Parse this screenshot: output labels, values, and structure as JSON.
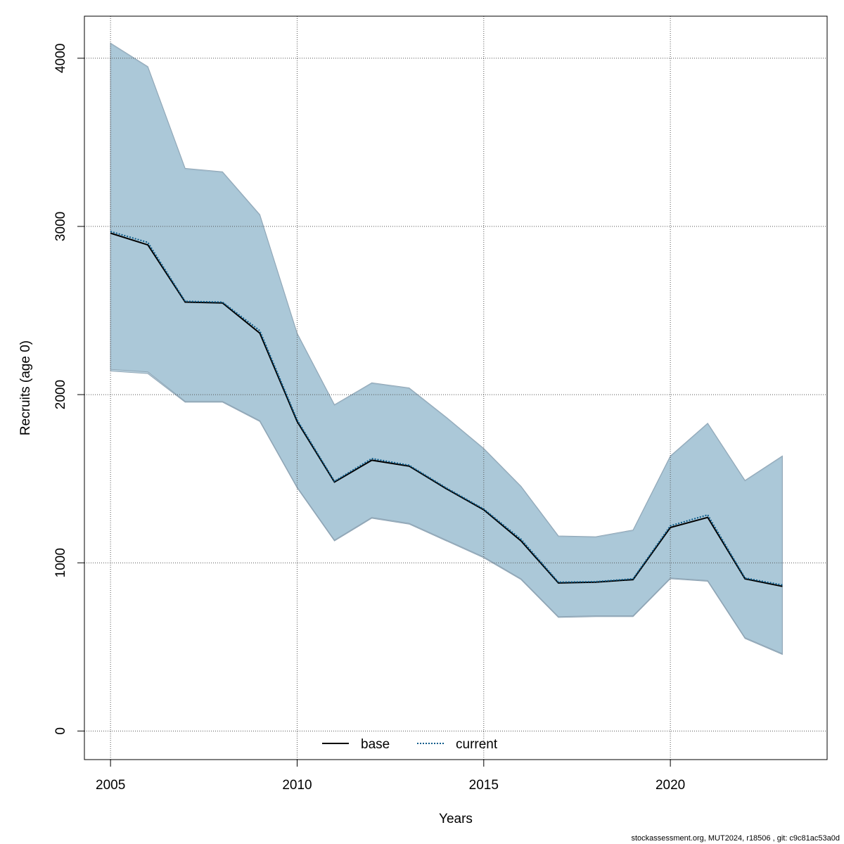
{
  "chart_data": {
    "type": "line",
    "title": "",
    "xlabel": "Years",
    "ylabel": "Recruits (age 0)",
    "xlim": [
      2004.3,
      2024.2
    ],
    "ylim": [
      -170,
      4250
    ],
    "x_ticks": [
      2005,
      2010,
      2015,
      2020
    ],
    "y_ticks": [
      0,
      1000,
      2000,
      3000,
      4000
    ],
    "grid": true,
    "legend_position": "bottom-center",
    "colors": {
      "band": "#a6c4d5",
      "band_outline": "#8fa5b5",
      "base_line": "#000000",
      "current_line": "#0b5b8a",
      "grid": "#555555"
    },
    "x": [
      2005,
      2006,
      2007,
      2008,
      2009,
      2010,
      2011,
      2012,
      2013,
      2014,
      2015,
      2016,
      2017,
      2018,
      2019,
      2020,
      2021,
      2022,
      2023
    ],
    "series": [
      {
        "name": "base",
        "style": "solid",
        "values": [
          2960,
          2890,
          2550,
          2545,
          2365,
          1840,
          1480,
          1610,
          1575,
          1440,
          1315,
          1130,
          880,
          885,
          900,
          1210,
          1270,
          905,
          860
        ],
        "lower": [
          2140,
          2125,
          1955,
          1955,
          1840,
          1445,
          1130,
          1265,
          1230,
          1130,
          1030,
          900,
          675,
          680,
          680,
          905,
          890,
          550,
          455
        ],
        "upper": [
          4085,
          3945,
          3340,
          3320,
          3065,
          2360,
          1935,
          2065,
          2035,
          1860,
          1675,
          1450,
          1155,
          1150,
          1190,
          1630,
          1825,
          1485,
          1630
        ]
      },
      {
        "name": "current",
        "style": "dotted",
        "values": [
          2970,
          2905,
          2555,
          2550,
          2380,
          1850,
          1485,
          1620,
          1580,
          1445,
          1320,
          1140,
          885,
          888,
          905,
          1220,
          1285,
          910,
          868
        ],
        "lower": [
          2150,
          2135,
          1960,
          1960,
          1845,
          1450,
          1135,
          1270,
          1235,
          1135,
          1035,
          905,
          680,
          685,
          685,
          910,
          895,
          555,
          460
        ],
        "upper": [
          4090,
          3950,
          3345,
          3325,
          3070,
          2365,
          1940,
          2070,
          2040,
          1865,
          1680,
          1455,
          1160,
          1155,
          1195,
          1635,
          1830,
          1490,
          1635
        ]
      }
    ]
  },
  "footer": "stockassessment.org, MUT2024, r18506 , git: c9c81ac53a0d"
}
